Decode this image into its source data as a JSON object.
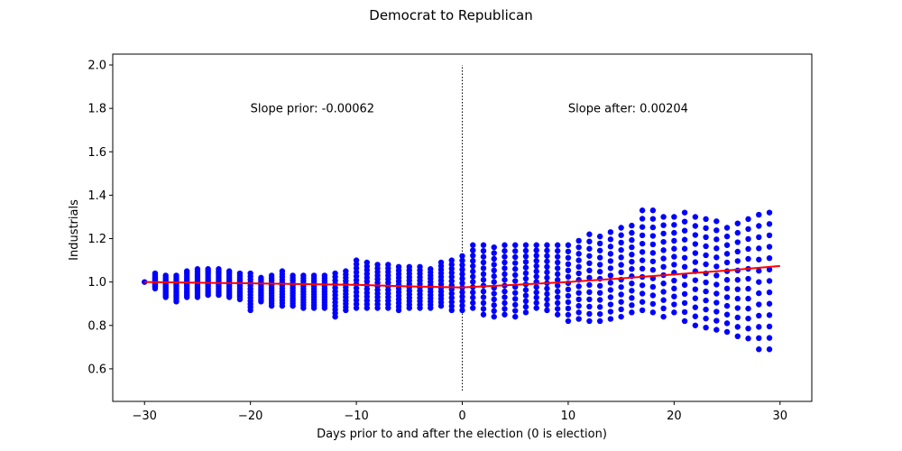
{
  "chart_data": {
    "type": "scatter",
    "title": "Democrat to Republican",
    "xlabel": "Days prior to and after the election (0 is election)",
    "ylabel": "Industrials",
    "xlim": [
      -33,
      33
    ],
    "ylim": [
      0.45,
      2.05
    ],
    "xticks": [
      -30,
      -20,
      -10,
      0,
      10,
      20,
      30
    ],
    "xtick_labels": [
      "−30",
      "−20",
      "−10",
      "0",
      "10",
      "20",
      "30"
    ],
    "yticks": [
      0.6,
      0.8,
      1.0,
      1.2,
      1.4,
      1.6,
      1.8,
      2.0
    ],
    "ytick_labels": [
      "0.6",
      "0.8",
      "1.0",
      "1.2",
      "1.4",
      "1.6",
      "1.8",
      "2.0"
    ],
    "grid": false,
    "annotations": [
      {
        "text": "Slope prior: -0.00062",
        "x": -20,
        "y": 1.8
      },
      {
        "text": "Slope after: 0.00204",
        "x": 10,
        "y": 1.8
      }
    ],
    "vline": {
      "x": 0,
      "ymin": 0.5,
      "ymax": 2.0,
      "style": "dotted",
      "color": "#000000"
    },
    "colors": {
      "points": "#0000ff",
      "trend": "#ff0000"
    },
    "envelope": {
      "x": [
        -30,
        -29,
        -28,
        -27,
        -26,
        -25,
        -24,
        -23,
        -22,
        -21,
        -20,
        -19,
        -18,
        -17,
        -16,
        -15,
        -14,
        -13,
        -12,
        -11,
        -10,
        -9,
        -8,
        -7,
        -6,
        -5,
        -4,
        -3,
        -2,
        -1,
        0,
        1,
        2,
        3,
        4,
        5,
        6,
        7,
        8,
        9,
        10,
        11,
        12,
        13,
        14,
        15,
        16,
        17,
        18,
        19,
        20,
        21,
        22,
        23,
        24,
        25,
        26,
        27,
        28,
        29
      ],
      "ymin": [
        1.0,
        0.97,
        0.93,
        0.91,
        0.93,
        0.93,
        0.94,
        0.94,
        0.93,
        0.92,
        0.87,
        0.91,
        0.89,
        0.89,
        0.89,
        0.88,
        0.88,
        0.88,
        0.84,
        0.87,
        0.88,
        0.88,
        0.88,
        0.88,
        0.87,
        0.88,
        0.88,
        0.88,
        0.89,
        0.87,
        0.87,
        0.88,
        0.85,
        0.84,
        0.85,
        0.84,
        0.86,
        0.88,
        0.87,
        0.85,
        0.82,
        0.83,
        0.82,
        0.82,
        0.83,
        0.84,
        0.86,
        0.87,
        0.86,
        0.84,
        0.86,
        0.82,
        0.8,
        0.79,
        0.78,
        0.77,
        0.75,
        0.74,
        0.69,
        0.69
      ],
      "ymax": [
        1.0,
        1.04,
        1.03,
        1.03,
        1.05,
        1.06,
        1.06,
        1.06,
        1.05,
        1.04,
        1.04,
        1.02,
        1.03,
        1.05,
        1.03,
        1.03,
        1.03,
        1.03,
        1.04,
        1.05,
        1.1,
        1.09,
        1.08,
        1.08,
        1.07,
        1.07,
        1.07,
        1.06,
        1.09,
        1.1,
        1.12,
        1.17,
        1.17,
        1.16,
        1.17,
        1.17,
        1.17,
        1.17,
        1.17,
        1.17,
        1.17,
        1.19,
        1.22,
        1.21,
        1.23,
        1.25,
        1.26,
        1.33,
        1.33,
        1.3,
        1.3,
        1.32,
        1.3,
        1.29,
        1.28,
        1.25,
        1.27,
        1.29,
        1.31,
        1.32
      ],
      "points_per_day": 13
    },
    "trend_line": {
      "x": [
        -30,
        -20,
        -10,
        -5,
        0,
        5,
        10,
        15,
        20,
        25,
        30
      ],
      "y": [
        1.0,
        0.994,
        0.987,
        0.98,
        0.975,
        0.987,
        1.0,
        1.017,
        1.035,
        1.053,
        1.074
      ]
    }
  }
}
